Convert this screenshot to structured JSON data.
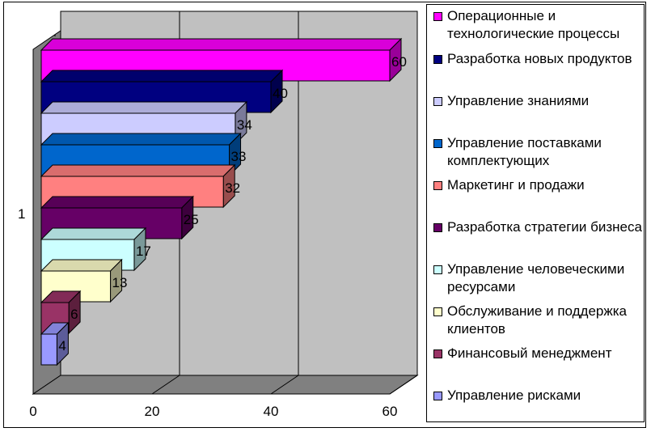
{
  "chart_data": {
    "type": "bar",
    "orientation": "horizontal",
    "style": "3d",
    "categories": [
      "1"
    ],
    "xlim": [
      0,
      60
    ],
    "xticks": [
      "0",
      "20",
      "40",
      "60"
    ],
    "grid": true,
    "legend_position": "right",
    "series": [
      {
        "name": "Операционные и технологические процессы",
        "value": 60,
        "label": "60",
        "color": "#ff00ff"
      },
      {
        "name": "Разработка новых продуктов",
        "value": 40,
        "label": "40",
        "color": "#000080"
      },
      {
        "name": "Управление знаниями",
        "value": 34,
        "label": "34",
        "color": "#ccccff"
      },
      {
        "name": "Управление поставками комплектующих",
        "value": 33,
        "label": "33",
        "color": "#0066cc"
      },
      {
        "name": "Маркетинг и продажи",
        "value": 32,
        "label": "32",
        "color": "#ff8080"
      },
      {
        "name": "Разработка стратегии бизнеса",
        "value": 25,
        "label": "25",
        "color": "#660066"
      },
      {
        "name": "Управление человеческими ресурсами",
        "value": 17,
        "label": "17",
        "color": "#ccffff"
      },
      {
        "name": "Обслуживание и поддержка клиентов",
        "value": 13,
        "label": "13",
        "color": "#ffffcc"
      },
      {
        "name": "Финансовый менеджмент",
        "value": 6,
        "label": "6",
        "color": "#993366"
      },
      {
        "name": "Управление рисками",
        "value": 4,
        "label": "4",
        "color": "#9999ff"
      }
    ]
  }
}
